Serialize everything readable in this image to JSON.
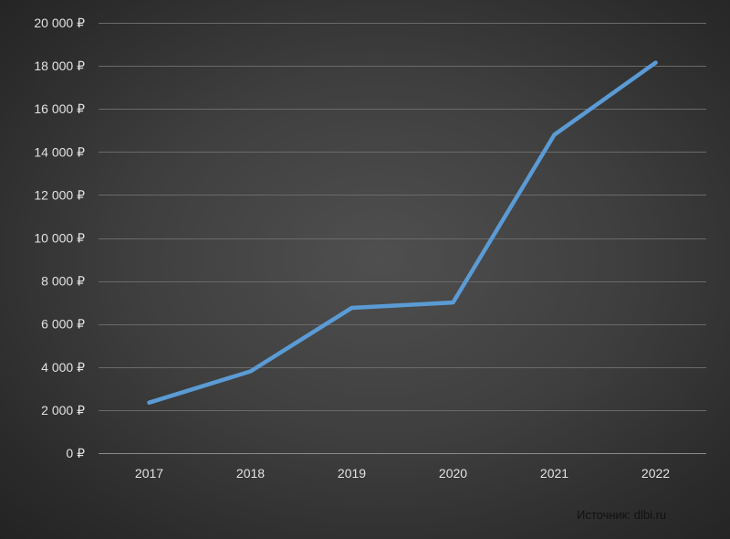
{
  "chart_data": {
    "type": "line",
    "categories": [
      "2017",
      "2018",
      "2019",
      "2020",
      "2021",
      "2022"
    ],
    "series": [
      {
        "values": [
          2350,
          3800,
          6750,
          7000,
          14800,
          18150
        ],
        "color": "#5b9bd5"
      }
    ],
    "ylim": [
      0,
      20000
    ],
    "yticks": [
      0,
      2000,
      4000,
      6000,
      8000,
      10000,
      12000,
      14000,
      16000,
      18000,
      20000
    ],
    "ytick_labels": [
      "0 ₽",
      "2 000 ₽",
      "4 000 ₽",
      "6 000 ₽",
      "8 000 ₽",
      "10 000 ₽",
      "12 000 ₽",
      "14 000 ₽",
      "16 000 ₽",
      "18 000 ₽",
      "20 000 ₽"
    ],
    "grid": true,
    "legend": "none",
    "title": "",
    "xlabel": "",
    "ylabel": ""
  },
  "source": "Источник: dlbi.ru"
}
